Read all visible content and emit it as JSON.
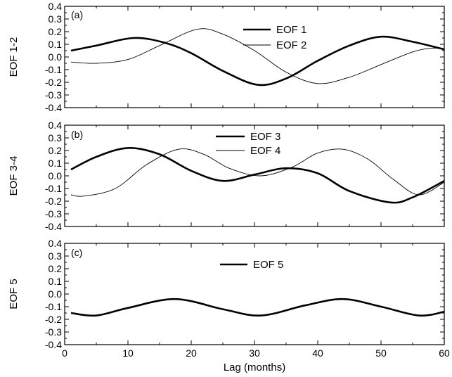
{
  "chart_data": [
    {
      "type": "line",
      "panel_label": "(a)",
      "ylabel": "EOF 1-2",
      "xlim": [
        0,
        60
      ],
      "ylim": [
        -0.4,
        0.4
      ],
      "xticks": [
        0,
        10,
        20,
        30,
        40,
        50,
        60
      ],
      "yticks": [
        -0.4,
        -0.3,
        -0.2,
        -0.1,
        0.0,
        0.1,
        0.2,
        0.3,
        0.4
      ],
      "ytick_labels": [
        "-0.4",
        "-0.3",
        "-0.2",
        "-0.1",
        "0.0",
        "0.1",
        "0.2",
        "0.3",
        "0.4"
      ],
      "legend_position": "top-right",
      "series": [
        {
          "name": "EOF 1",
          "style": "thick",
          "x": [
            1,
            5,
            11,
            16,
            20,
            25,
            30.5,
            35,
            40,
            45,
            50,
            55,
            60
          ],
          "y": [
            0.05,
            0.09,
            0.15,
            0.11,
            0.03,
            -0.11,
            -0.22,
            -0.17,
            -0.03,
            0.09,
            0.16,
            0.12,
            0.06
          ]
        },
        {
          "name": "EOF 2",
          "style": "thin",
          "x": [
            1,
            5,
            10,
            15,
            21,
            25,
            30,
            35,
            40,
            45,
            50,
            55,
            58,
            60
          ],
          "y": [
            -0.04,
            -0.05,
            -0.02,
            0.09,
            0.22,
            0.18,
            0.05,
            -0.12,
            -0.21,
            -0.16,
            -0.06,
            0.04,
            0.07,
            0.06
          ]
        }
      ]
    },
    {
      "type": "line",
      "panel_label": "(b)",
      "ylabel": "EOF 3-4",
      "xlim": [
        0,
        60
      ],
      "ylim": [
        -0.4,
        0.4
      ],
      "xticks": [
        0,
        10,
        20,
        30,
        40,
        50,
        60
      ],
      "yticks": [
        -0.4,
        -0.3,
        -0.2,
        -0.1,
        0.0,
        0.1,
        0.2,
        0.3,
        0.4
      ],
      "ytick_labels": [
        "-0.4",
        "-0.3",
        "-0.2",
        "-0.1",
        "0.0",
        "0.1",
        "0.2",
        "0.3",
        "0.4"
      ],
      "legend_position": "top-center",
      "series": [
        {
          "name": "EOF 3",
          "style": "thick",
          "x": [
            1,
            5,
            10,
            15,
            20,
            25,
            30,
            35,
            40,
            45,
            51.5,
            55,
            60
          ],
          "y": [
            0.05,
            0.15,
            0.22,
            0.17,
            0.04,
            -0.04,
            0.01,
            0.06,
            0.02,
            -0.12,
            -0.21,
            -0.17,
            -0.04
          ]
        },
        {
          "name": "EOF 4",
          "style": "thin",
          "x": [
            1,
            3,
            8,
            13,
            18,
            22,
            26,
            31,
            36,
            40,
            44,
            48,
            52,
            56,
            60
          ],
          "y": [
            -0.15,
            -0.16,
            -0.1,
            0.09,
            0.21,
            0.17,
            0.06,
            0.0,
            0.07,
            0.18,
            0.21,
            0.13,
            -0.03,
            -0.15,
            -0.05
          ]
        }
      ]
    },
    {
      "type": "line",
      "panel_label": "(c)",
      "ylabel": "EOF 5",
      "xlabel": "Lag (months)",
      "xlim": [
        0,
        60
      ],
      "ylim": [
        -0.4,
        0.4
      ],
      "xticks": [
        0,
        10,
        20,
        30,
        40,
        50,
        60
      ],
      "xtick_labels": [
        "0",
        "10",
        "20",
        "30",
        "40",
        "50",
        "60"
      ],
      "yticks": [
        -0.4,
        -0.3,
        -0.2,
        -0.1,
        0.0,
        0.1,
        0.2,
        0.3,
        0.4
      ],
      "ytick_labels": [
        "-0.4",
        "-0.3",
        "-0.2",
        "-0.1",
        "0.0",
        "0.1",
        "0.2",
        "0.3",
        "0.4"
      ],
      "legend_position": "top-center",
      "series": [
        {
          "name": "EOF 5",
          "style": "thick",
          "x": [
            1,
            5,
            10,
            17.5,
            25,
            31,
            38,
            44,
            50,
            56,
            60
          ],
          "y": [
            -0.15,
            -0.17,
            -0.11,
            -0.04,
            -0.12,
            -0.17,
            -0.09,
            -0.04,
            -0.1,
            -0.17,
            -0.14
          ]
        }
      ]
    }
  ]
}
